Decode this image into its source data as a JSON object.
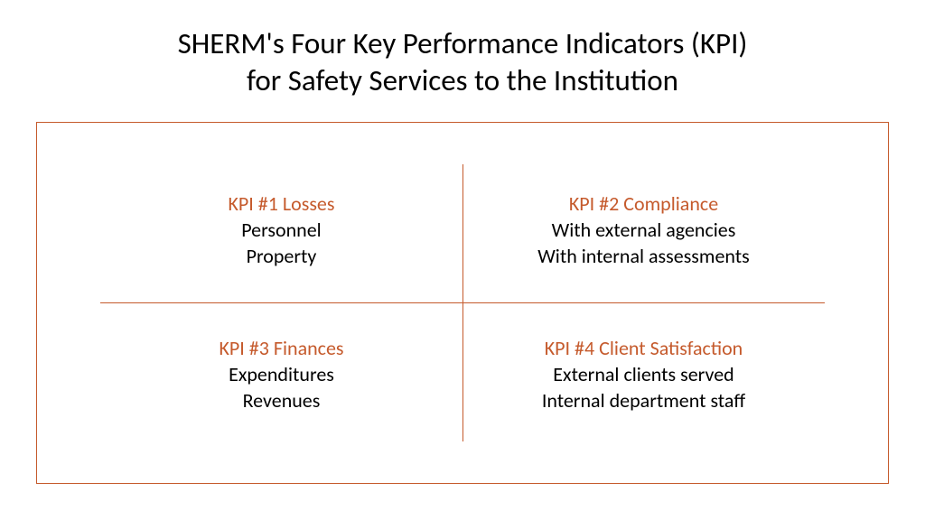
{
  "colors": {
    "accent": "#c55a2c",
    "border": "#c55a2c",
    "divider": "#c55a2c",
    "text": "#000000",
    "background": "#ffffff"
  },
  "title": {
    "line1": "SHERM's Four Key Performance Indicators (KPI)",
    "line2": "for Safety Services to the Institution",
    "fontsize": 33
  },
  "kpis": {
    "k1": {
      "heading": "KPI #1 Losses",
      "line1": "Personnel",
      "line2": "Property"
    },
    "k2": {
      "heading": "KPI #2 Compliance",
      "line1": "With external agencies",
      "line2": "With internal assessments"
    },
    "k3": {
      "heading": "KPI #3 Finances",
      "line1": "Expenditures",
      "line2": "Revenues"
    },
    "k4": {
      "heading": "KPI #4 Client Satisfaction",
      "line1": "External clients served",
      "line2": "Internal department staff"
    }
  },
  "typography": {
    "heading_fontsize": 22,
    "body_fontsize": 22
  }
}
